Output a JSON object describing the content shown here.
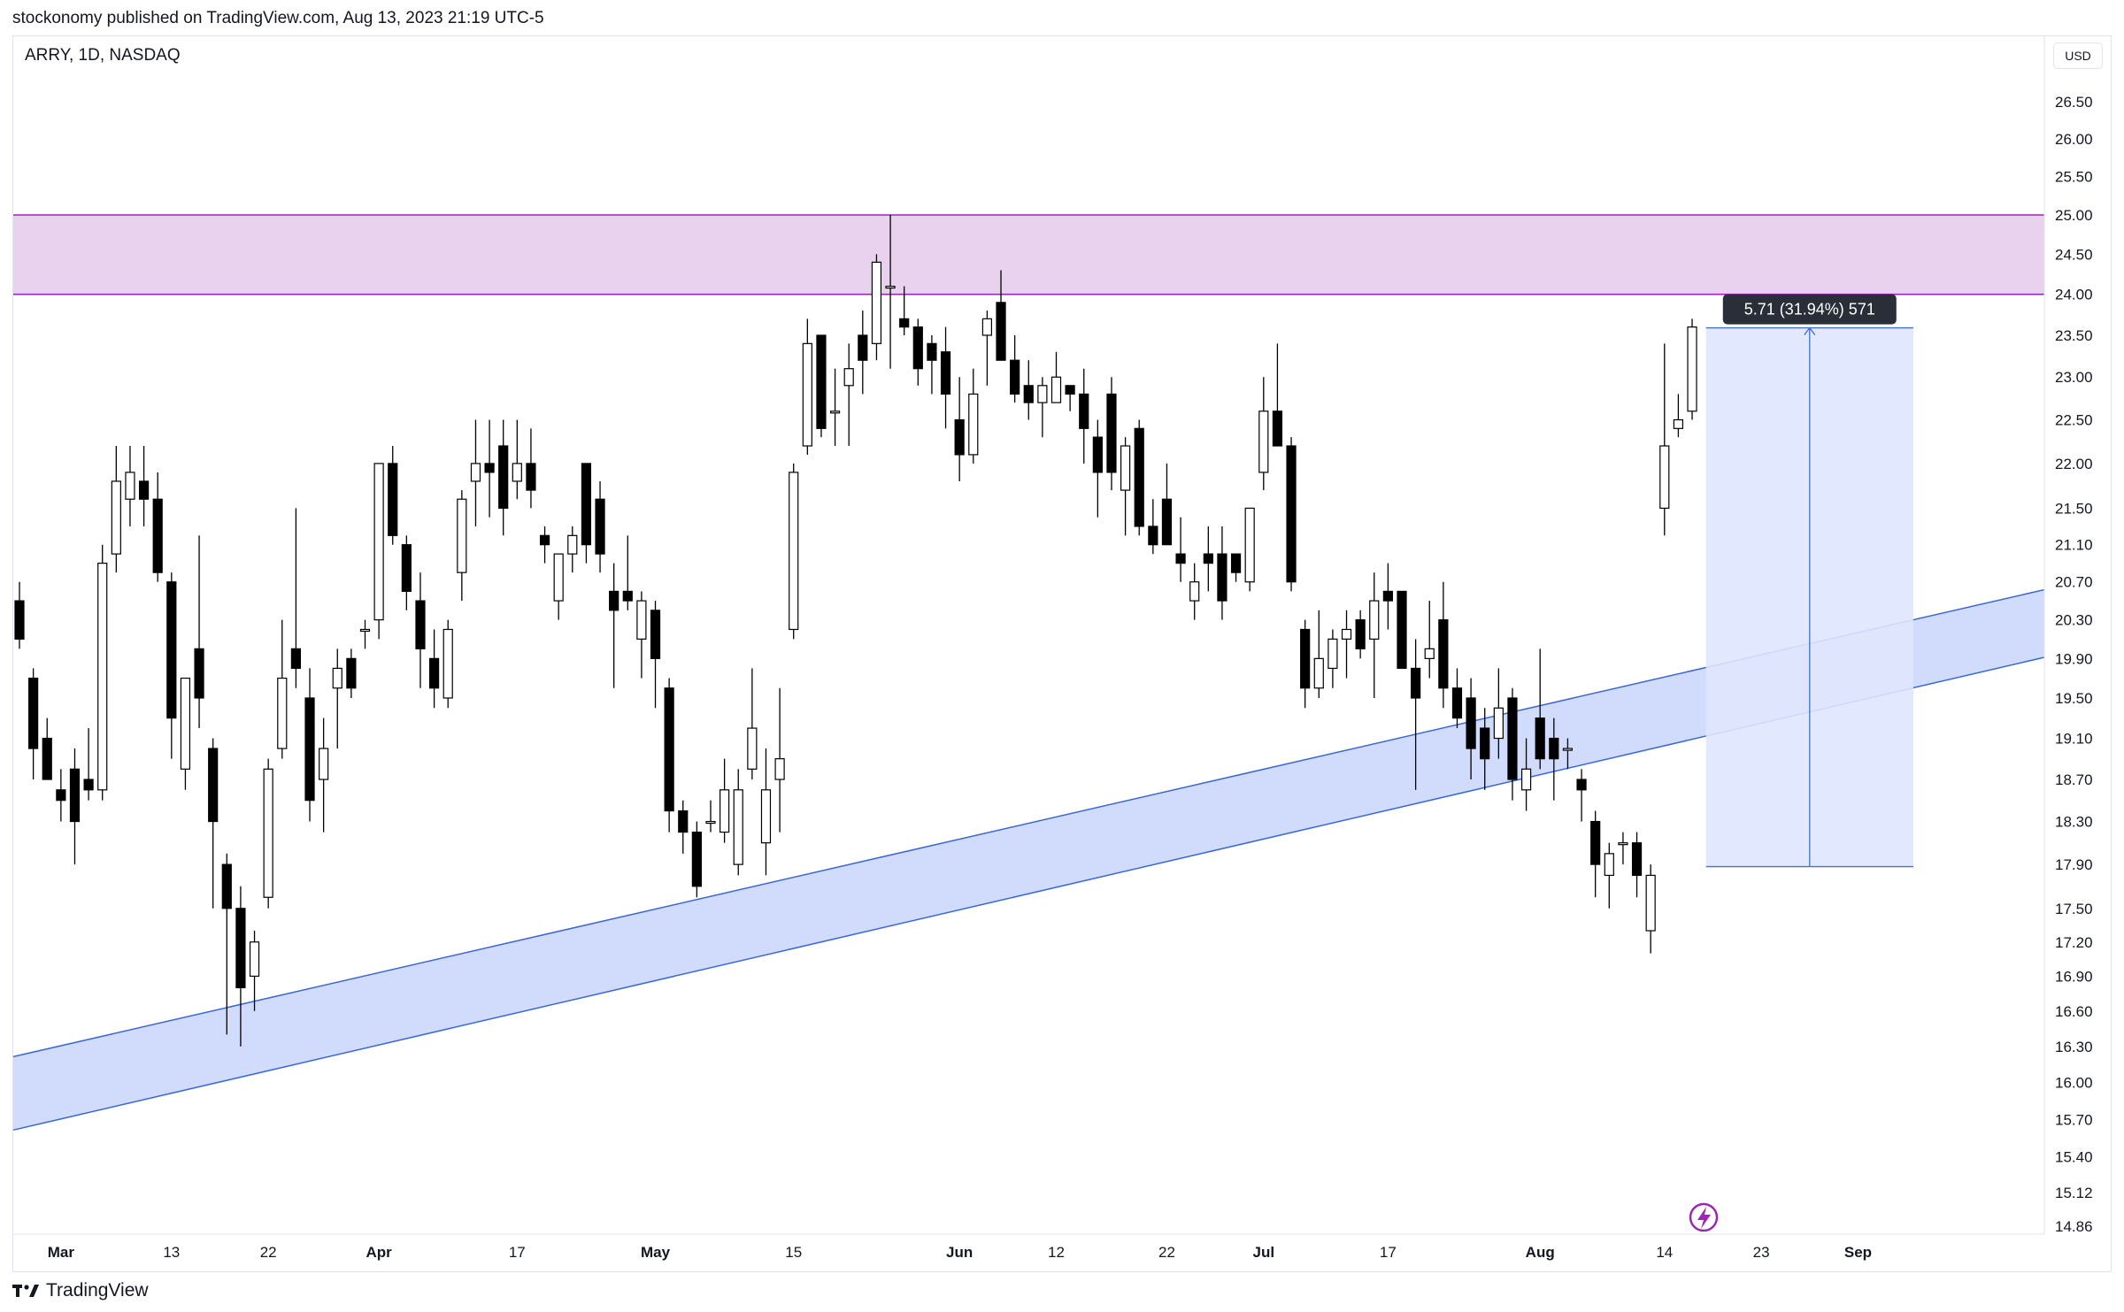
{
  "header": {
    "text": "stockonomy published on TradingView.com, Aug 13, 2023 21:19 UTC-5"
  },
  "chart": {
    "symbol": "ARRY, 1D, NASDAQ",
    "currency": "USD"
  },
  "footer": {
    "brand": "TradingView"
  },
  "colors": {
    "bull_fill": "#ffffff",
    "bear_fill": "#000000",
    "zone": "#e8d2ee",
    "zone_line": "#9c27b0",
    "channel": "#c9d6fb",
    "channel_line": "#3a66d8",
    "measure": "#dfe6fd",
    "measure_line": "#3d74c8"
  },
  "chart_data": {
    "type": "candlestick",
    "y_axis": {
      "ticks": [
        "26.50",
        "26.00",
        "25.50",
        "25.00",
        "24.50",
        "24.00",
        "23.50",
        "23.00",
        "22.50",
        "22.00",
        "21.50",
        "21.10",
        "20.70",
        "20.30",
        "19.90",
        "19.50",
        "19.10",
        "18.70",
        "18.30",
        "17.90",
        "17.50",
        "17.20",
        "16.90",
        "16.60",
        "16.30",
        "16.00",
        "15.70",
        "15.40",
        "15.12",
        "14.86"
      ],
      "scale": "log"
    },
    "x_axis": {
      "labels": [
        "Mar",
        "13",
        "22",
        "Apr",
        "17",
        "May",
        "15",
        "Jun",
        "12",
        "22",
        "Jul",
        "17",
        "Aug",
        "14",
        "23",
        "Sep"
      ]
    },
    "candles": [
      {
        "d": "2023-02-24",
        "o": 20.5,
        "h": 20.7,
        "l": 20.0,
        "c": 20.1
      },
      {
        "d": "2023-02-27",
        "o": 19.7,
        "h": 19.8,
        "l": 18.7,
        "c": 19.0
      },
      {
        "d": "2023-02-28",
        "o": 19.1,
        "h": 19.3,
        "l": 18.7,
        "c": 18.7
      },
      {
        "d": "2023-03-01",
        "o": 18.6,
        "h": 18.8,
        "l": 18.3,
        "c": 18.5
      },
      {
        "d": "2023-03-02",
        "o": 18.8,
        "h": 19.0,
        "l": 17.9,
        "c": 18.3
      },
      {
        "d": "2023-03-03",
        "o": 18.7,
        "h": 19.2,
        "l": 18.5,
        "c": 18.6
      },
      {
        "d": "2023-03-06",
        "o": 18.6,
        "h": 21.1,
        "l": 18.5,
        "c": 20.9
      },
      {
        "d": "2023-03-07",
        "o": 21.0,
        "h": 22.2,
        "l": 20.8,
        "c": 21.8
      },
      {
        "d": "2023-03-08",
        "o": 21.6,
        "h": 22.2,
        "l": 21.3,
        "c": 21.9
      },
      {
        "d": "2023-03-09",
        "o": 21.8,
        "h": 22.2,
        "l": 21.3,
        "c": 21.6
      },
      {
        "d": "2023-03-10",
        "o": 21.6,
        "h": 21.9,
        "l": 20.7,
        "c": 20.8
      },
      {
        "d": "2023-03-13",
        "o": 20.7,
        "h": 20.8,
        "l": 18.9,
        "c": 19.3
      },
      {
        "d": "2023-03-14",
        "o": 18.8,
        "h": 19.7,
        "l": 18.6,
        "c": 19.7
      },
      {
        "d": "2023-03-15",
        "o": 20.0,
        "h": 21.2,
        "l": 19.2,
        "c": 19.5
      },
      {
        "d": "2023-03-16",
        "o": 19.0,
        "h": 19.1,
        "l": 17.5,
        "c": 18.3
      },
      {
        "d": "2023-03-17",
        "o": 17.9,
        "h": 18.0,
        "l": 16.4,
        "c": 17.5
      },
      {
        "d": "2023-03-20",
        "o": 17.5,
        "h": 17.7,
        "l": 16.3,
        "c": 16.8
      },
      {
        "d": "2023-03-21",
        "o": 16.9,
        "h": 17.3,
        "l": 16.6,
        "c": 17.2
      },
      {
        "d": "2023-03-22",
        "o": 17.6,
        "h": 18.9,
        "l": 17.5,
        "c": 18.8
      },
      {
        "d": "2023-03-23",
        "o": 19.0,
        "h": 20.3,
        "l": 18.9,
        "c": 19.7
      },
      {
        "d": "2023-03-24",
        "o": 20.0,
        "h": 21.5,
        "l": 19.6,
        "c": 19.8
      },
      {
        "d": "2023-03-27",
        "o": 19.5,
        "h": 19.8,
        "l": 18.3,
        "c": 18.5
      },
      {
        "d": "2023-03-28",
        "o": 18.7,
        "h": 19.3,
        "l": 18.2,
        "c": 19.0
      },
      {
        "d": "2023-03-29",
        "o": 19.6,
        "h": 20.0,
        "l": 19.0,
        "c": 19.8
      },
      {
        "d": "2023-03-30",
        "o": 19.9,
        "h": 20.0,
        "l": 19.5,
        "c": 19.6
      },
      {
        "d": "2023-03-31",
        "o": 20.2,
        "h": 20.3,
        "l": 20.0,
        "c": 20.2
      },
      {
        "d": "2023-04-03",
        "o": 20.3,
        "h": 22.0,
        "l": 20.1,
        "c": 22.0
      },
      {
        "d": "2023-04-04",
        "o": 22.0,
        "h": 22.2,
        "l": 21.1,
        "c": 21.2
      },
      {
        "d": "2023-04-05",
        "o": 21.1,
        "h": 21.2,
        "l": 20.4,
        "c": 20.6
      },
      {
        "d": "2023-04-06",
        "o": 20.5,
        "h": 20.8,
        "l": 19.6,
        "c": 20.0
      },
      {
        "d": "2023-04-07",
        "o": 19.9,
        "h": 20.2,
        "l": 19.4,
        "c": 19.6
      },
      {
        "d": "2023-04-10",
        "o": 19.5,
        "h": 20.3,
        "l": 19.4,
        "c": 20.2
      },
      {
        "d": "2023-04-11",
        "o": 20.8,
        "h": 21.7,
        "l": 20.5,
        "c": 21.6
      },
      {
        "d": "2023-04-12",
        "o": 21.8,
        "h": 22.5,
        "l": 21.3,
        "c": 22.0
      },
      {
        "d": "2023-04-13",
        "o": 22.0,
        "h": 22.5,
        "l": 21.4,
        "c": 21.9
      },
      {
        "d": "2023-04-14",
        "o": 22.2,
        "h": 22.5,
        "l": 21.2,
        "c": 21.5
      },
      {
        "d": "2023-04-17",
        "o": 21.8,
        "h": 22.5,
        "l": 21.6,
        "c": 22.0
      },
      {
        "d": "2023-04-18",
        "o": 22.0,
        "h": 22.4,
        "l": 21.5,
        "c": 21.7
      },
      {
        "d": "2023-04-19",
        "o": 21.2,
        "h": 21.3,
        "l": 20.9,
        "c": 21.1
      },
      {
        "d": "2023-04-20",
        "o": 20.5,
        "h": 21.0,
        "l": 20.3,
        "c": 21.0
      },
      {
        "d": "2023-04-21",
        "o": 21.0,
        "h": 21.3,
        "l": 20.8,
        "c": 21.2
      },
      {
        "d": "2023-04-24",
        "o": 22.0,
        "h": 22.0,
        "l": 20.9,
        "c": 21.1
      },
      {
        "d": "2023-04-25",
        "o": 21.6,
        "h": 21.8,
        "l": 20.8,
        "c": 21.0
      },
      {
        "d": "2023-04-26",
        "o": 20.6,
        "h": 20.9,
        "l": 19.6,
        "c": 20.4
      },
      {
        "d": "2023-04-27",
        "o": 20.6,
        "h": 21.2,
        "l": 20.4,
        "c": 20.5
      },
      {
        "d": "2023-04-28",
        "o": 20.1,
        "h": 20.6,
        "l": 19.7,
        "c": 20.5
      },
      {
        "d": "2023-05-01",
        "o": 20.4,
        "h": 20.5,
        "l": 19.4,
        "c": 19.9
      },
      {
        "d": "2023-05-02",
        "o": 19.6,
        "h": 19.7,
        "l": 18.2,
        "c": 18.4
      },
      {
        "d": "2023-05-03",
        "o": 18.4,
        "h": 18.5,
        "l": 18.0,
        "c": 18.2
      },
      {
        "d": "2023-05-04",
        "o": 18.2,
        "h": 18.3,
        "l": 17.6,
        "c": 17.7
      },
      {
        "d": "2023-05-05",
        "o": 18.3,
        "h": 18.5,
        "l": 18.2,
        "c": 18.3
      },
      {
        "d": "2023-05-08",
        "o": 18.2,
        "h": 18.9,
        "l": 18.1,
        "c": 18.6
      },
      {
        "d": "2023-05-09",
        "o": 17.9,
        "h": 18.8,
        "l": 17.8,
        "c": 18.6
      },
      {
        "d": "2023-05-10",
        "o": 18.8,
        "h": 19.8,
        "l": 18.7,
        "c": 19.2
      },
      {
        "d": "2023-05-11",
        "o": 18.1,
        "h": 19.0,
        "l": 17.8,
        "c": 18.6
      },
      {
        "d": "2023-05-12",
        "o": 18.7,
        "h": 19.6,
        "l": 18.2,
        "c": 18.9
      },
      {
        "d": "2023-05-15",
        "o": 20.2,
        "h": 22.0,
        "l": 20.1,
        "c": 21.9
      },
      {
        "d": "2023-05-16",
        "o": 22.2,
        "h": 23.7,
        "l": 22.1,
        "c": 23.4
      },
      {
        "d": "2023-05-17",
        "o": 23.5,
        "h": 23.5,
        "l": 22.3,
        "c": 22.4
      },
      {
        "d": "2023-05-18",
        "o": 22.6,
        "h": 23.1,
        "l": 22.2,
        "c": 22.6
      },
      {
        "d": "2023-05-19",
        "o": 22.9,
        "h": 23.4,
        "l": 22.2,
        "c": 23.1
      },
      {
        "d": "2023-05-22",
        "o": 23.5,
        "h": 23.8,
        "l": 22.8,
        "c": 23.2
      },
      {
        "d": "2023-05-23",
        "o": 23.4,
        "h": 24.5,
        "l": 23.2,
        "c": 24.4
      },
      {
        "d": "2023-05-24",
        "o": 24.1,
        "h": 25.0,
        "l": 23.1,
        "c": 24.1
      },
      {
        "d": "2023-05-25",
        "o": 23.7,
        "h": 24.1,
        "l": 23.5,
        "c": 23.6
      },
      {
        "d": "2023-05-26",
        "o": 23.6,
        "h": 23.7,
        "l": 22.9,
        "c": 23.1
      },
      {
        "d": "2023-05-30",
        "o": 23.4,
        "h": 23.5,
        "l": 22.8,
        "c": 23.2
      },
      {
        "d": "2023-05-31",
        "o": 23.3,
        "h": 23.6,
        "l": 22.4,
        "c": 22.8
      },
      {
        "d": "2023-06-01",
        "o": 22.5,
        "h": 23.0,
        "l": 21.8,
        "c": 22.1
      },
      {
        "d": "2023-06-02",
        "o": 22.1,
        "h": 23.1,
        "l": 22.0,
        "c": 22.8
      },
      {
        "d": "2023-06-05",
        "o": 23.5,
        "h": 23.8,
        "l": 22.9,
        "c": 23.7
      },
      {
        "d": "2023-06-06",
        "o": 23.9,
        "h": 24.3,
        "l": 23.2,
        "c": 23.2
      },
      {
        "d": "2023-06-07",
        "o": 23.2,
        "h": 23.5,
        "l": 22.7,
        "c": 22.8
      },
      {
        "d": "2023-06-08",
        "o": 22.9,
        "h": 23.2,
        "l": 22.5,
        "c": 22.7
      },
      {
        "d": "2023-06-09",
        "o": 22.7,
        "h": 23.0,
        "l": 22.3,
        "c": 22.9
      },
      {
        "d": "2023-06-12",
        "o": 22.7,
        "h": 23.3,
        "l": 22.7,
        "c": 23.0
      },
      {
        "d": "2023-06-13",
        "o": 22.9,
        "h": 22.9,
        "l": 22.6,
        "c": 22.8
      },
      {
        "d": "2023-06-14",
        "o": 22.8,
        "h": 23.1,
        "l": 22.0,
        "c": 22.4
      },
      {
        "d": "2023-06-15",
        "o": 22.3,
        "h": 22.5,
        "l": 21.4,
        "c": 21.9
      },
      {
        "d": "2023-06-16",
        "o": 22.8,
        "h": 23.0,
        "l": 21.7,
        "c": 21.9
      },
      {
        "d": "2023-06-19",
        "o": 21.7,
        "h": 22.3,
        "l": 21.2,
        "c": 22.2
      },
      {
        "d": "2023-06-20",
        "o": 22.4,
        "h": 22.5,
        "l": 21.2,
        "c": 21.3
      },
      {
        "d": "2023-06-21",
        "o": 21.3,
        "h": 21.6,
        "l": 21.0,
        "c": 21.1
      },
      {
        "d": "2023-06-22",
        "o": 21.6,
        "h": 22.0,
        "l": 21.1,
        "c": 21.1
      },
      {
        "d": "2023-06-23",
        "o": 21.0,
        "h": 21.4,
        "l": 20.7,
        "c": 20.9
      },
      {
        "d": "2023-06-26",
        "o": 20.5,
        "h": 20.9,
        "l": 20.3,
        "c": 20.7
      },
      {
        "d": "2023-06-27",
        "o": 21.0,
        "h": 21.3,
        "l": 20.6,
        "c": 20.9
      },
      {
        "d": "2023-06-28",
        "o": 21.0,
        "h": 21.3,
        "l": 20.3,
        "c": 20.5
      },
      {
        "d": "2023-06-29",
        "o": 21.0,
        "h": 21.0,
        "l": 20.7,
        "c": 20.8
      },
      {
        "d": "2023-06-30",
        "o": 20.7,
        "h": 21.5,
        "l": 20.6,
        "c": 21.5
      },
      {
        "d": "2023-07-03",
        "o": 21.9,
        "h": 23.0,
        "l": 21.7,
        "c": 22.6
      },
      {
        "d": "2023-07-05",
        "o": 22.6,
        "h": 23.4,
        "l": 22.2,
        "c": 22.2
      },
      {
        "d": "2023-07-06",
        "o": 22.2,
        "h": 22.3,
        "l": 20.6,
        "c": 20.7
      },
      {
        "d": "2023-07-07",
        "o": 20.2,
        "h": 20.3,
        "l": 19.4,
        "c": 19.6
      },
      {
        "d": "2023-07-10",
        "o": 19.6,
        "h": 20.4,
        "l": 19.5,
        "c": 19.9
      },
      {
        "d": "2023-07-11",
        "o": 19.8,
        "h": 20.2,
        "l": 19.6,
        "c": 20.1
      },
      {
        "d": "2023-07-12",
        "o": 20.1,
        "h": 20.4,
        "l": 19.7,
        "c": 20.2
      },
      {
        "d": "2023-07-13",
        "o": 20.3,
        "h": 20.4,
        "l": 19.9,
        "c": 20.0
      },
      {
        "d": "2023-07-14",
        "o": 20.1,
        "h": 20.8,
        "l": 19.5,
        "c": 20.5
      },
      {
        "d": "2023-07-17",
        "o": 20.6,
        "h": 20.9,
        "l": 20.2,
        "c": 20.5
      },
      {
        "d": "2023-07-18",
        "o": 20.6,
        "h": 20.6,
        "l": 19.8,
        "c": 19.8
      },
      {
        "d": "2023-07-19",
        "o": 19.8,
        "h": 20.1,
        "l": 18.6,
        "c": 19.5
      },
      {
        "d": "2023-07-20",
        "o": 19.9,
        "h": 20.5,
        "l": 19.7,
        "c": 20.0
      },
      {
        "d": "2023-07-21",
        "o": 20.3,
        "h": 20.7,
        "l": 19.4,
        "c": 19.6
      },
      {
        "d": "2023-07-24",
        "o": 19.6,
        "h": 19.8,
        "l": 19.2,
        "c": 19.3
      },
      {
        "d": "2023-07-25",
        "o": 19.5,
        "h": 19.7,
        "l": 18.7,
        "c": 19.0
      },
      {
        "d": "2023-07-26",
        "o": 19.2,
        "h": 19.4,
        "l": 18.6,
        "c": 18.9
      },
      {
        "d": "2023-07-27",
        "o": 19.1,
        "h": 19.8,
        "l": 18.9,
        "c": 19.4
      },
      {
        "d": "2023-07-28",
        "o": 19.5,
        "h": 19.6,
        "l": 18.5,
        "c": 18.7
      },
      {
        "d": "2023-07-31",
        "o": 18.6,
        "h": 19.1,
        "l": 18.4,
        "c": 18.8
      },
      {
        "d": "2023-08-01",
        "o": 19.3,
        "h": 20.0,
        "l": 18.8,
        "c": 18.9
      },
      {
        "d": "2023-08-02",
        "o": 19.1,
        "h": 19.3,
        "l": 18.5,
        "c": 18.9
      },
      {
        "d": "2023-08-03",
        "o": 19.0,
        "h": 19.1,
        "l": 18.8,
        "c": 19.0
      },
      {
        "d": "2023-08-04",
        "o": 18.7,
        "h": 18.8,
        "l": 18.3,
        "c": 18.6
      },
      {
        "d": "2023-08-07",
        "o": 18.3,
        "h": 18.4,
        "l": 17.6,
        "c": 17.9
      },
      {
        "d": "2023-08-08",
        "o": 17.8,
        "h": 18.1,
        "l": 17.5,
        "c": 18.0
      },
      {
        "d": "2023-08-09",
        "o": 18.1,
        "h": 18.2,
        "l": 17.9,
        "c": 18.1
      },
      {
        "d": "2023-08-10",
        "o": 18.1,
        "h": 18.2,
        "l": 17.6,
        "c": 17.8
      },
      {
        "d": "2023-08-11",
        "o": 17.3,
        "h": 17.9,
        "l": 17.1,
        "c": 17.8
      },
      {
        "d": "2023-08-14",
        "o": 21.5,
        "h": 23.4,
        "l": 21.2,
        "c": 22.2
      },
      {
        "d": "2023-08-15",
        "o": 22.4,
        "h": 22.8,
        "l": 22.3,
        "c": 22.5
      },
      {
        "d": "2023-08-16",
        "o": 22.6,
        "h": 23.7,
        "l": 22.5,
        "c": 23.6
      }
    ],
    "resistance_zone": {
      "low": 24.0,
      "high": 25.0
    },
    "channel": {
      "upper": [
        [
          "2023-02-23",
          16.2
        ],
        [
          "2023-09-12",
          20.4
        ]
      ],
      "lower": [
        [
          "2023-02-23",
          15.6
        ],
        [
          "2023-09-12",
          19.7
        ]
      ]
    },
    "measure": {
      "from_price": 17.88,
      "to_price": 23.59,
      "start": "2023-08-17",
      "end": "2023-09-07",
      "label": "5.71 (31.94%) 571"
    }
  }
}
